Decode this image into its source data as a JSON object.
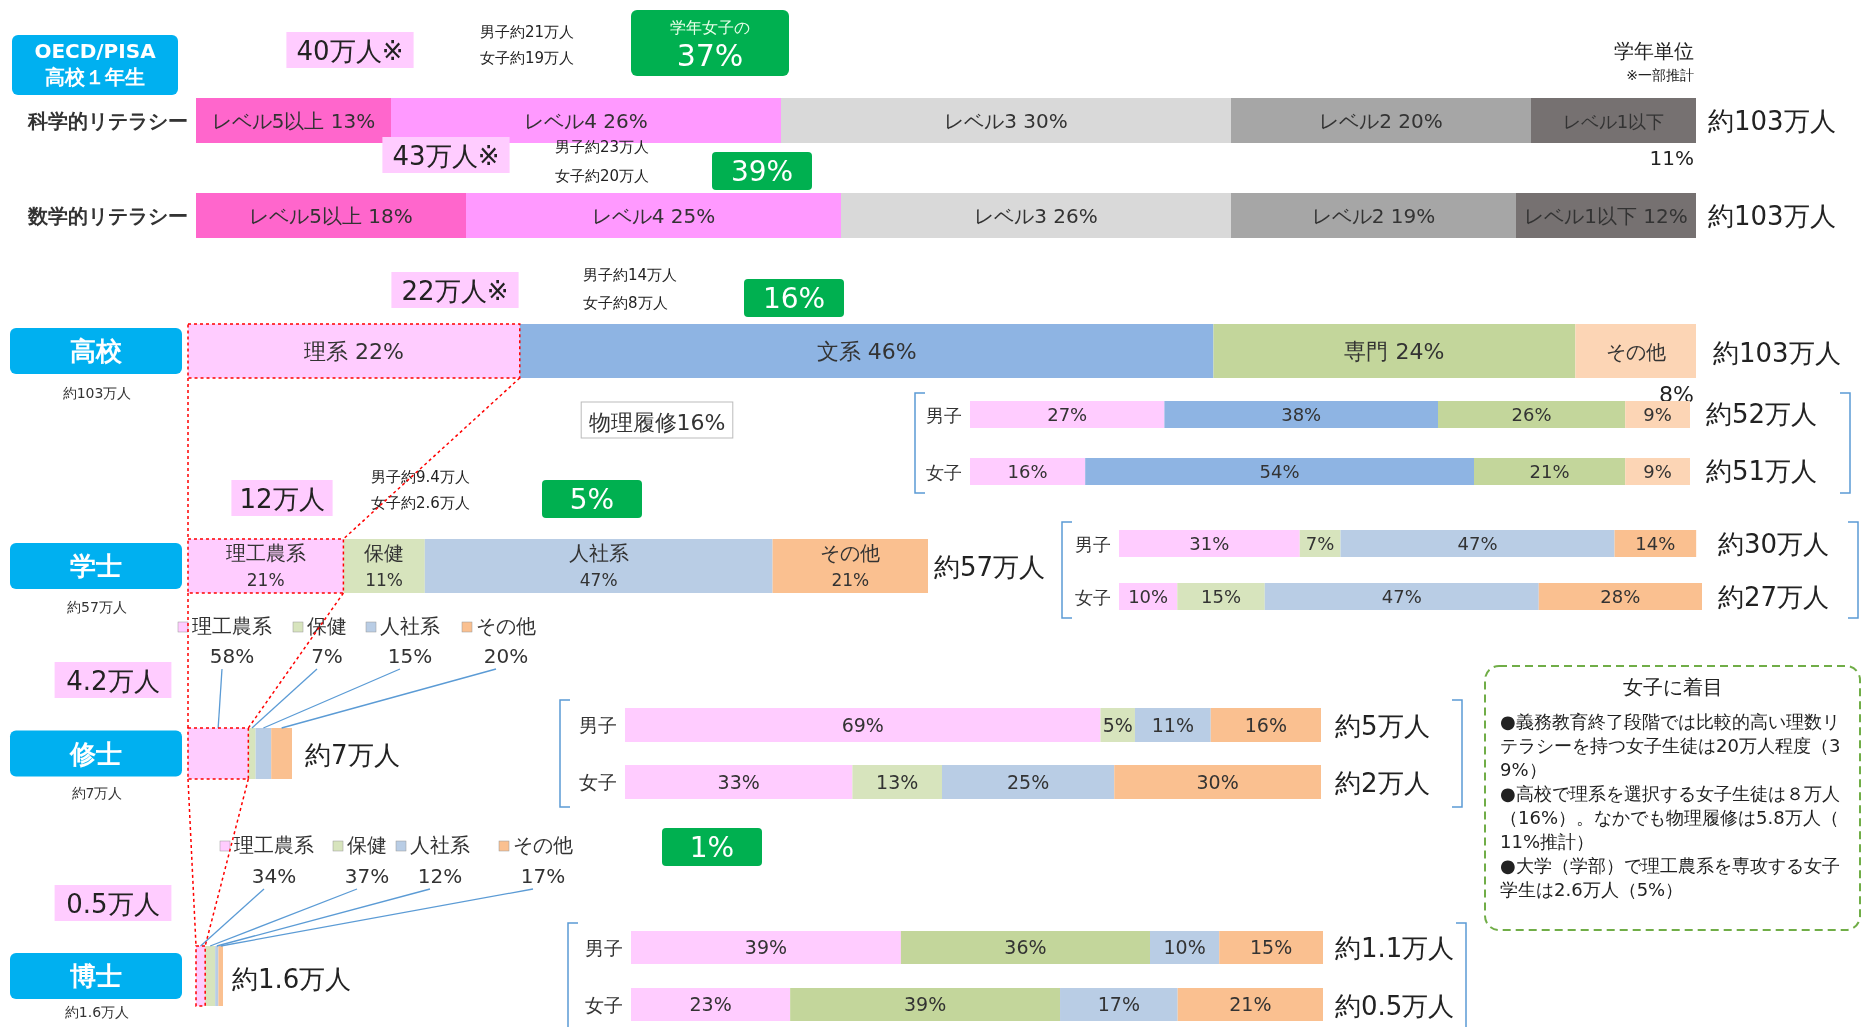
{
  "chart_data": [
    {
      "type": "bar",
      "orientation": "horizontal",
      "stacked": true,
      "title": "OECD/PISA 高校１年生",
      "subtitle": "学年単位 ※一部推計",
      "categories": [
        "科学的リテラシー",
        "数学的リテラシー"
      ],
      "series": [
        {
          "name": "レベル5以上",
          "color": "#ff66cc",
          "values": [
            13,
            18
          ],
          "value_labels": [
            "13%",
            "18%"
          ]
        },
        {
          "name": "レベル4",
          "color": "#ff99ff",
          "values": [
            26,
            25
          ],
          "value_labels": [
            "26%",
            "25%"
          ]
        },
        {
          "name": "レベル3",
          "color": "#d9d9d9",
          "values": [
            30,
            26
          ],
          "value_labels": [
            "30%",
            "26%"
          ]
        },
        {
          "name": "レベル2",
          "color": "#a6a6a6",
          "values": [
            20,
            19
          ],
          "value_labels": [
            "20%",
            "19%"
          ]
        },
        {
          "name": "レベル1以下",
          "color": "#767171",
          "values": [
            11,
            12
          ],
          "value_labels": [
            "11%",
            "12%"
          ]
        }
      ],
      "annotations": [
        "40万人※",
        "男子約21万人",
        "女子約19万人",
        "学年女子の",
        "37%",
        "43万人※",
        "男子約23万人",
        "女子約20万人",
        "39%",
        "約103万人",
        "約103万人"
      ]
    },
    {
      "type": "bar",
      "orientation": "horizontal",
      "stacked": true,
      "categories": [
        "高校"
      ],
      "series": [
        {
          "name": "理系",
          "color": "#ffccff",
          "values": [
            22
          ],
          "value_labels": [
            "22%"
          ]
        },
        {
          "name": "文系",
          "color": "#8eb4e3",
          "values": [
            46
          ],
          "value_labels": [
            "46%"
          ]
        },
        {
          "name": "専門",
          "color": "#c3d69b",
          "values": [
            24
          ],
          "value_labels": [
            "24%"
          ]
        },
        {
          "name": "その他",
          "color": "#fcd5b5",
          "values": [
            8
          ],
          "value_labels": [
            "8%"
          ]
        }
      ],
      "annotations": [
        "約103万人",
        "22万人※",
        "男子約14万人",
        "女子約8万人",
        "16%",
        "物理履修16%",
        "約103万人"
      ]
    },
    {
      "type": "bar",
      "orientation": "horizontal",
      "stacked": true,
      "categories": [
        "男子",
        "女子"
      ],
      "series": [
        {
          "color": "#ffccff",
          "values": [
            27,
            16
          ],
          "value_labels": [
            "27%",
            "16%"
          ]
        },
        {
          "color": "#8eb4e3",
          "values": [
            38,
            54
          ],
          "value_labels": [
            "38%",
            "54%"
          ]
        },
        {
          "color": "#c3d69b",
          "values": [
            26,
            21
          ],
          "value_labels": [
            "26%",
            "21%"
          ]
        },
        {
          "color": "#fcd5b5",
          "values": [
            9,
            9
          ],
          "value_labels": [
            "9%",
            "9%"
          ]
        }
      ],
      "annotations": [
        "約52万人",
        "約51万人"
      ]
    },
    {
      "type": "bar",
      "orientation": "horizontal",
      "stacked": true,
      "categories": [
        "学士"
      ],
      "series": [
        {
          "name": "理工農系",
          "color": "#ffccff",
          "values": [
            21
          ],
          "value_labels": [
            "21%"
          ]
        },
        {
          "name": "保健",
          "color": "#d7e4bd",
          "values": [
            11
          ],
          "value_labels": [
            "11%"
          ]
        },
        {
          "name": "人社系",
          "color": "#b9cde5",
          "values": [
            47
          ],
          "value_labels": [
            "47%"
          ]
        },
        {
          "name": "その他",
          "color": "#fac090",
          "values": [
            21
          ],
          "value_labels": [
            "21%"
          ]
        }
      ],
      "annotations": [
        "約57万人",
        "12万人",
        "男子約9.4万人",
        "女子約2.6万人",
        "5%",
        "約57万人"
      ]
    },
    {
      "type": "bar",
      "orientation": "horizontal",
      "stacked": true,
      "categories": [
        "男子",
        "女子"
      ],
      "series": [
        {
          "color": "#ffccff",
          "values": [
            31,
            10
          ],
          "value_labels": [
            "31%",
            "10%"
          ]
        },
        {
          "color": "#d7e4bd",
          "values": [
            7,
            15
          ],
          "value_labels": [
            "7%",
            "15%"
          ]
        },
        {
          "color": "#b9cde5",
          "values": [
            47,
            47
          ],
          "value_labels": [
            "47%",
            "47%"
          ]
        },
        {
          "color": "#fac090",
          "values": [
            14,
            28
          ],
          "value_labels": [
            "14%",
            "28%"
          ]
        }
      ],
      "annotations": [
        "約30万人",
        "約27万人"
      ]
    },
    {
      "type": "bar",
      "orientation": "horizontal",
      "stacked": true,
      "categories": [
        "修士"
      ],
      "series": [
        {
          "name": "理工農系",
          "color": "#ffccff",
          "values": [
            58
          ],
          "value_labels": [
            "58%"
          ]
        },
        {
          "name": "保健",
          "color": "#d7e4bd",
          "values": [
            7
          ],
          "value_labels": [
            "7%"
          ]
        },
        {
          "name": "人社系",
          "color": "#b9cde5",
          "values": [
            15
          ],
          "value_labels": [
            "15%"
          ]
        },
        {
          "name": "その他",
          "color": "#fac090",
          "values": [
            20
          ],
          "value_labels": [
            "20%"
          ]
        }
      ],
      "legend": "top",
      "annotations": [
        "約7万人",
        "4.2万人",
        "約7万人"
      ]
    },
    {
      "type": "bar",
      "orientation": "horizontal",
      "stacked": true,
      "categories": [
        "男子",
        "女子"
      ],
      "series": [
        {
          "color": "#ffccff",
          "values": [
            69,
            33
          ],
          "value_labels": [
            "69%",
            "33%"
          ]
        },
        {
          "color": "#d7e4bd",
          "values": [
            5,
            13
          ],
          "value_labels": [
            "5%",
            "13%"
          ]
        },
        {
          "color": "#b9cde5",
          "values": [
            11,
            25
          ],
          "value_labels": [
            "11%",
            "25%"
          ]
        },
        {
          "color": "#fac090",
          "values": [
            16,
            30
          ],
          "value_labels": [
            "16%",
            "30%"
          ]
        }
      ],
      "annotations": [
        "約5万人",
        "約2万人",
        "1%"
      ]
    },
    {
      "type": "bar",
      "orientation": "horizontal",
      "stacked": true,
      "categories": [
        "博士"
      ],
      "series": [
        {
          "name": "理工農系",
          "color": "#ffccff",
          "values": [
            34
          ],
          "value_labels": [
            "34%"
          ]
        },
        {
          "name": "保健",
          "color": "#d7e4bd",
          "values": [
            37
          ],
          "value_labels": [
            "37%"
          ]
        },
        {
          "name": "人社系",
          "color": "#b9cde5",
          "values": [
            12
          ],
          "value_labels": [
            "12%"
          ]
        },
        {
          "name": "その他",
          "color": "#fac090",
          "values": [
            17
          ],
          "value_labels": [
            "17%"
          ]
        }
      ],
      "legend": "top",
      "annotations": [
        "約1.6万人",
        "0.5万人",
        "約1.6万人"
      ]
    },
    {
      "type": "bar",
      "orientation": "horizontal",
      "stacked": true,
      "categories": [
        "男子",
        "女子"
      ],
      "series": [
        {
          "color": "#ffccff",
          "values": [
            39,
            23
          ],
          "value_labels": [
            "39%",
            "23%"
          ]
        },
        {
          "color": "#c3d69b",
          "values": [
            36,
            39
          ],
          "value_labels": [
            "36%",
            "39%"
          ]
        },
        {
          "color": "#b9cde5",
          "values": [
            10,
            17
          ],
          "value_labels": [
            "10%",
            "17%"
          ]
        },
        {
          "color": "#fac090",
          "values": [
            15,
            21
          ],
          "value_labels": [
            "15%",
            "21%"
          ]
        }
      ],
      "annotations": [
        "約1.1万人",
        "約0.5万人"
      ]
    },
    {
      "type": "other",
      "title": "女子に着目",
      "annotations": [
        "●義務教育終了段階では比較的高い理数リテラシーを持つ女子生徒は20万人程度（39%）",
        "●高校で理系を選択する女子生徒は８万人（16%）。なかでも物理履修は5.8万人（11%推計）",
        "●大学（学部）で理工農系を専攻する女子学生は2.6万人（5%）"
      ]
    }
  ]
}
